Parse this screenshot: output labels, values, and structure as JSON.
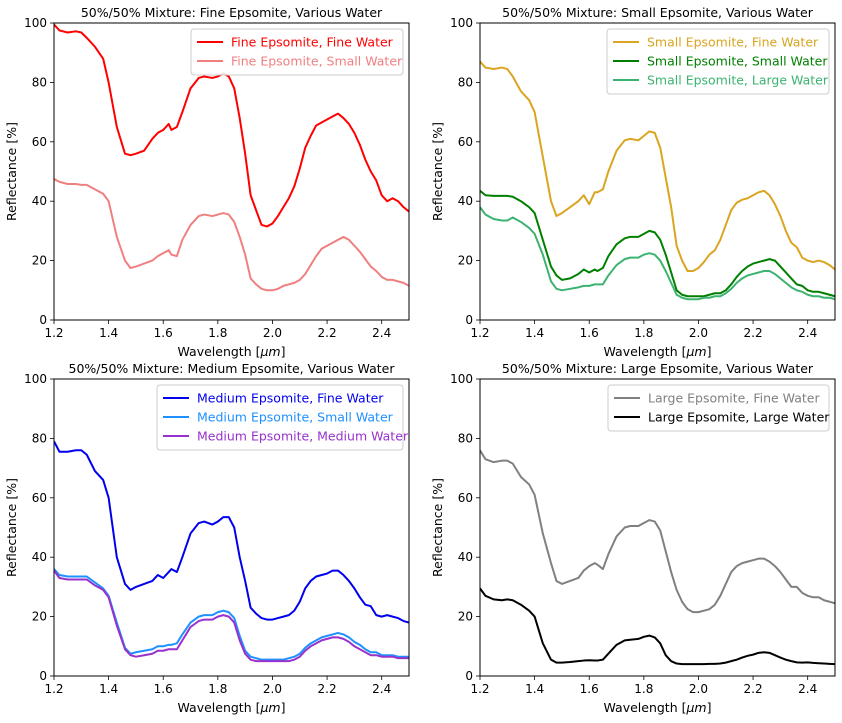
{
  "chart_data": [
    {
      "type": "line",
      "title": "50%/50% Mixture: Fine Epsomite, Various Water",
      "xlabel": "Wavelength [",
      "xlabel_unit": "μm",
      "xlabel_end": "]",
      "ylabel": "Reflectance [%]",
      "xlim": [
        1.2,
        2.5
      ],
      "ylim": [
        0,
        100
      ],
      "xticks": [
        "1.2",
        "1.4",
        "1.6",
        "1.8",
        "2.0",
        "2.2",
        "2.4"
      ],
      "yticks": [
        "0",
        "20",
        "40",
        "60",
        "80",
        "100"
      ],
      "legend_position": "upper-right",
      "x": [
        1.2,
        1.22,
        1.25,
        1.28,
        1.3,
        1.32,
        1.35,
        1.38,
        1.4,
        1.43,
        1.46,
        1.48,
        1.5,
        1.53,
        1.56,
        1.58,
        1.6,
        1.62,
        1.63,
        1.65,
        1.67,
        1.7,
        1.73,
        1.75,
        1.78,
        1.8,
        1.82,
        1.84,
        1.86,
        1.88,
        1.9,
        1.92,
        1.94,
        1.96,
        1.98,
        2.0,
        2.02,
        2.04,
        2.06,
        2.08,
        2.1,
        2.12,
        2.14,
        2.16,
        2.18,
        2.2,
        2.22,
        2.24,
        2.26,
        2.28,
        2.3,
        2.32,
        2.34,
        2.36,
        2.38,
        2.4,
        2.42,
        2.44,
        2.46,
        2.48,
        2.5
      ],
      "series": [
        {
          "name": "Fine Epsomite, Fine Water",
          "color": "#ff0000",
          "values": [
            99.5,
            97.5,
            96.8,
            97.2,
            96.8,
            95.0,
            92.0,
            88.0,
            80.0,
            65.0,
            56.0,
            55.5,
            56.0,
            57.0,
            61.0,
            63.0,
            64.0,
            66.0,
            64.0,
            65.0,
            70.0,
            78.0,
            81.5,
            82.0,
            81.5,
            82.0,
            83.0,
            82.0,
            78.0,
            68.0,
            56.0,
            42.0,
            37.0,
            32.0,
            31.5,
            32.5,
            35.0,
            38.0,
            41.0,
            45.0,
            51.0,
            58.0,
            62.0,
            65.5,
            66.5,
            67.5,
            68.5,
            69.5,
            68.0,
            66.0,
            63.0,
            59.0,
            54.0,
            50.0,
            47.0,
            42.0,
            40.0,
            41.0,
            40.0,
            38.0,
            36.5
          ]
        },
        {
          "name": "Fine Epsomite, Small Water",
          "color": "#f08080",
          "values": [
            47.5,
            46.5,
            45.8,
            45.8,
            45.5,
            45.5,
            44.0,
            42.5,
            40.0,
            28.0,
            20.0,
            17.5,
            18.0,
            19.0,
            20.0,
            21.5,
            22.5,
            23.5,
            22.0,
            21.5,
            27.0,
            32.0,
            35.0,
            35.5,
            35.0,
            35.5,
            36.0,
            35.5,
            33.0,
            28.0,
            22.0,
            14.0,
            12.0,
            10.5,
            10.0,
            10.0,
            10.5,
            11.5,
            12.0,
            12.5,
            13.5,
            15.5,
            18.5,
            21.5,
            24.0,
            25.0,
            26.0,
            27.0,
            28.0,
            27.0,
            25.0,
            23.0,
            20.5,
            18.0,
            16.5,
            14.5,
            13.5,
            13.5,
            13.0,
            12.5,
            11.5
          ]
        }
      ]
    },
    {
      "type": "line",
      "title": "50%/50% Mixture: Small Epsomite, Various Water",
      "xlabel": "Wavelength [",
      "xlabel_unit": "μm",
      "xlabel_end": "]",
      "ylabel": "Reflectance [%]",
      "xlim": [
        1.2,
        2.5
      ],
      "ylim": [
        0,
        100
      ],
      "xticks": [
        "1.2",
        "1.4",
        "1.6",
        "1.8",
        "2.0",
        "2.2",
        "2.4"
      ],
      "yticks": [
        "0",
        "20",
        "40",
        "60",
        "80",
        "100"
      ],
      "legend_position": "upper-right",
      "x": [
        1.2,
        1.22,
        1.25,
        1.28,
        1.3,
        1.32,
        1.35,
        1.38,
        1.4,
        1.43,
        1.46,
        1.48,
        1.5,
        1.53,
        1.56,
        1.58,
        1.6,
        1.62,
        1.63,
        1.65,
        1.67,
        1.7,
        1.73,
        1.75,
        1.78,
        1.8,
        1.82,
        1.84,
        1.86,
        1.88,
        1.9,
        1.92,
        1.94,
        1.96,
        1.98,
        2.0,
        2.02,
        2.04,
        2.06,
        2.08,
        2.1,
        2.12,
        2.14,
        2.16,
        2.18,
        2.2,
        2.22,
        2.24,
        2.26,
        2.28,
        2.3,
        2.32,
        2.34,
        2.36,
        2.38,
        2.4,
        2.42,
        2.44,
        2.46,
        2.48,
        2.5
      ],
      "series": [
        {
          "name": "Small Epsomite, Fine Water",
          "color": "#daa520",
          "values": [
            87.0,
            85.0,
            84.5,
            85.0,
            84.5,
            82.0,
            77.0,
            74.0,
            70.0,
            55.0,
            40.0,
            35.0,
            36.0,
            38.0,
            40.0,
            42.0,
            39.0,
            43.0,
            43.0,
            44.0,
            50.0,
            57.0,
            60.5,
            61.0,
            60.5,
            62.0,
            63.5,
            63.0,
            58.0,
            48.0,
            38.0,
            25.0,
            20.0,
            16.5,
            16.5,
            17.5,
            19.5,
            22.0,
            23.5,
            27.0,
            32.0,
            37.0,
            39.5,
            40.5,
            41.0,
            42.0,
            43.0,
            43.5,
            42.0,
            39.0,
            35.0,
            30.0,
            26.0,
            24.5,
            21.0,
            20.0,
            19.5,
            20.0,
            19.5,
            18.5,
            17.0
          ]
        },
        {
          "name": "Small Epsomite, Small Water",
          "color": "#008000",
          "values": [
            43.5,
            42.0,
            41.8,
            41.8,
            41.8,
            41.5,
            40.0,
            38.0,
            36.0,
            27.0,
            18.0,
            15.0,
            13.5,
            14.0,
            15.5,
            17.0,
            16.0,
            17.0,
            16.5,
            17.5,
            21.5,
            25.5,
            27.5,
            28.0,
            28.0,
            29.0,
            30.0,
            29.5,
            27.0,
            22.0,
            16.0,
            10.0,
            8.5,
            8.0,
            8.0,
            8.0,
            8.0,
            8.5,
            9.0,
            9.0,
            10.0,
            12.0,
            14.5,
            16.5,
            18.0,
            19.0,
            19.5,
            20.0,
            20.5,
            20.0,
            18.0,
            16.0,
            14.0,
            12.0,
            11.5,
            10.0,
            9.5,
            9.5,
            9.0,
            8.5,
            8.0
          ]
        },
        {
          "name": "Small Epsomite, Large Water",
          "color": "#3cb371",
          "values": [
            38.0,
            35.5,
            34.0,
            33.5,
            33.5,
            34.5,
            33.0,
            31.0,
            29.0,
            22.0,
            13.0,
            10.5,
            10.0,
            10.5,
            11.0,
            11.5,
            11.5,
            12.0,
            12.0,
            12.0,
            15.0,
            18.5,
            20.5,
            21.0,
            21.0,
            22.0,
            22.5,
            22.0,
            20.0,
            16.5,
            12.5,
            8.5,
            7.5,
            7.0,
            7.0,
            7.0,
            7.5,
            7.5,
            8.0,
            8.0,
            9.0,
            10.5,
            12.5,
            14.0,
            15.0,
            15.5,
            16.0,
            16.5,
            16.5,
            15.5,
            14.0,
            12.5,
            11.0,
            10.0,
            9.5,
            8.5,
            8.0,
            8.0,
            7.5,
            7.5,
            7.0
          ]
        }
      ]
    },
    {
      "type": "line",
      "title": "50%/50% Mixture: Medium Epsomite, Various Water",
      "xlabel": "Wavelength [",
      "xlabel_unit": "μm",
      "xlabel_end": "]",
      "ylabel": "Reflectance [%]",
      "xlim": [
        1.2,
        2.5
      ],
      "ylim": [
        0,
        100
      ],
      "xticks": [
        "1.2",
        "1.4",
        "1.6",
        "1.8",
        "2.0",
        "2.2",
        "2.4"
      ],
      "yticks": [
        "0",
        "20",
        "40",
        "60",
        "80",
        "100"
      ],
      "legend_position": "upper-right",
      "x": [
        1.2,
        1.22,
        1.25,
        1.28,
        1.3,
        1.32,
        1.35,
        1.38,
        1.4,
        1.43,
        1.46,
        1.48,
        1.5,
        1.53,
        1.56,
        1.58,
        1.6,
        1.62,
        1.63,
        1.65,
        1.67,
        1.7,
        1.73,
        1.75,
        1.78,
        1.8,
        1.82,
        1.84,
        1.86,
        1.88,
        1.9,
        1.92,
        1.94,
        1.96,
        1.98,
        2.0,
        2.02,
        2.04,
        2.06,
        2.08,
        2.1,
        2.12,
        2.14,
        2.16,
        2.18,
        2.2,
        2.22,
        2.24,
        2.26,
        2.28,
        2.3,
        2.32,
        2.34,
        2.36,
        2.38,
        2.4,
        2.42,
        2.44,
        2.46,
        2.48,
        2.5
      ],
      "series": [
        {
          "name": "Medium Epsomite, Fine Water",
          "color": "#0000ee",
          "values": [
            79.0,
            75.5,
            75.5,
            76.0,
            76.0,
            74.5,
            69.0,
            66.0,
            60.0,
            40.0,
            31.0,
            29.0,
            30.0,
            31.0,
            32.0,
            34.0,
            33.0,
            35.0,
            36.0,
            35.0,
            40.0,
            48.0,
            51.5,
            52.0,
            51.0,
            52.0,
            53.5,
            53.5,
            50.0,
            40.0,
            32.0,
            23.0,
            21.0,
            19.5,
            19.0,
            19.0,
            19.5,
            20.0,
            20.5,
            22.0,
            25.0,
            29.5,
            32.0,
            33.5,
            34.0,
            34.5,
            35.5,
            35.5,
            34.0,
            32.0,
            29.5,
            26.5,
            24.0,
            23.5,
            20.5,
            20.0,
            20.5,
            20.0,
            19.5,
            18.5,
            18.0
          ]
        },
        {
          "name": "Medium Epsomite, Small Water",
          "color": "#1e90ff",
          "values": [
            36.0,
            34.0,
            33.5,
            33.5,
            33.5,
            33.5,
            31.5,
            29.5,
            27.0,
            18.0,
            9.5,
            7.5,
            8.0,
            8.5,
            9.0,
            10.0,
            10.0,
            10.5,
            10.5,
            11.0,
            14.0,
            18.0,
            20.0,
            20.5,
            20.5,
            21.5,
            22.0,
            21.5,
            19.5,
            13.5,
            8.5,
            6.5,
            6.0,
            5.5,
            5.5,
            5.5,
            5.5,
            5.5,
            6.0,
            6.5,
            7.5,
            9.5,
            11.0,
            12.0,
            13.0,
            13.5,
            14.0,
            14.5,
            14.0,
            13.0,
            11.5,
            10.5,
            9.0,
            8.0,
            8.0,
            7.0,
            7.0,
            7.0,
            6.5,
            6.5,
            6.5
          ]
        },
        {
          "name": "Medium Epsomite, Medium Water",
          "color": "#9932cc",
          "values": [
            35.5,
            33.0,
            32.5,
            32.5,
            32.5,
            32.5,
            30.5,
            29.0,
            26.5,
            17.0,
            9.0,
            7.0,
            6.5,
            7.0,
            7.5,
            8.5,
            8.5,
            9.0,
            9.0,
            9.0,
            12.0,
            16.5,
            18.5,
            19.0,
            19.0,
            20.0,
            20.5,
            20.0,
            18.0,
            12.0,
            7.5,
            5.5,
            5.0,
            5.0,
            5.0,
            5.0,
            5.0,
            5.0,
            5.0,
            5.5,
            6.5,
            8.5,
            10.0,
            11.0,
            12.0,
            12.5,
            13.0,
            13.0,
            12.5,
            11.5,
            10.0,
            9.0,
            8.0,
            7.0,
            7.0,
            6.5,
            6.5,
            6.5,
            6.0,
            6.0,
            6.0
          ]
        }
      ]
    },
    {
      "type": "line",
      "title": "50%/50% Mixture: Large Epsomite, Various Water",
      "xlabel": "Wavelength [",
      "xlabel_unit": "μm",
      "xlabel_end": "]",
      "ylabel": "Reflectance [%]",
      "xlim": [
        1.2,
        2.5
      ],
      "ylim": [
        0,
        100
      ],
      "xticks": [
        "1.2",
        "1.4",
        "1.6",
        "1.8",
        "2.0",
        "2.2",
        "2.4"
      ],
      "yticks": [
        "0",
        "20",
        "40",
        "60",
        "80",
        "100"
      ],
      "legend_position": "upper-right",
      "x": [
        1.2,
        1.22,
        1.25,
        1.28,
        1.3,
        1.32,
        1.35,
        1.38,
        1.4,
        1.43,
        1.46,
        1.48,
        1.5,
        1.53,
        1.56,
        1.58,
        1.6,
        1.62,
        1.63,
        1.65,
        1.67,
        1.7,
        1.73,
        1.75,
        1.78,
        1.8,
        1.82,
        1.84,
        1.86,
        1.88,
        1.9,
        1.92,
        1.94,
        1.96,
        1.98,
        2.0,
        2.02,
        2.04,
        2.06,
        2.08,
        2.1,
        2.12,
        2.14,
        2.16,
        2.18,
        2.2,
        2.22,
        2.24,
        2.26,
        2.28,
        2.3,
        2.32,
        2.34,
        2.36,
        2.38,
        2.4,
        2.42,
        2.44,
        2.46,
        2.48,
        2.5
      ],
      "series": [
        {
          "name": "Large Epsomite, Fine Water",
          "color": "#808080",
          "values": [
            76.0,
            73.0,
            72.0,
            72.5,
            72.5,
            71.5,
            67.0,
            64.5,
            61.0,
            48.0,
            38.0,
            32.0,
            31.0,
            32.0,
            33.0,
            35.5,
            37.0,
            38.0,
            37.5,
            36.0,
            41.0,
            47.0,
            50.0,
            50.5,
            50.5,
            51.5,
            52.5,
            52.0,
            49.0,
            42.0,
            35.0,
            29.0,
            25.0,
            22.5,
            21.5,
            21.5,
            22.0,
            22.5,
            24.0,
            27.0,
            31.0,
            35.0,
            37.0,
            38.0,
            38.5,
            39.0,
            39.5,
            39.5,
            38.5,
            37.0,
            35.0,
            32.5,
            30.0,
            30.0,
            28.0,
            27.0,
            26.5,
            26.5,
            25.5,
            25.0,
            24.5
          ]
        },
        {
          "name": "Large Epsomite, Large Water",
          "color": "#000000",
          "values": [
            29.5,
            27.0,
            25.8,
            25.5,
            25.8,
            25.5,
            24.0,
            22.0,
            20.0,
            11.0,
            5.5,
            4.5,
            4.5,
            4.7,
            5.0,
            5.2,
            5.3,
            5.2,
            5.2,
            5.5,
            7.5,
            10.5,
            12.0,
            12.2,
            12.5,
            13.2,
            13.6,
            13.0,
            11.0,
            7.0,
            5.0,
            4.2,
            4.0,
            4.0,
            4.0,
            4.0,
            4.0,
            4.1,
            4.1,
            4.2,
            4.5,
            5.0,
            5.5,
            6.2,
            6.8,
            7.2,
            7.8,
            8.0,
            7.8,
            7.0,
            6.2,
            5.5,
            5.0,
            4.6,
            4.5,
            4.6,
            4.4,
            4.3,
            4.2,
            4.1,
            4.0
          ]
        }
      ]
    }
  ]
}
